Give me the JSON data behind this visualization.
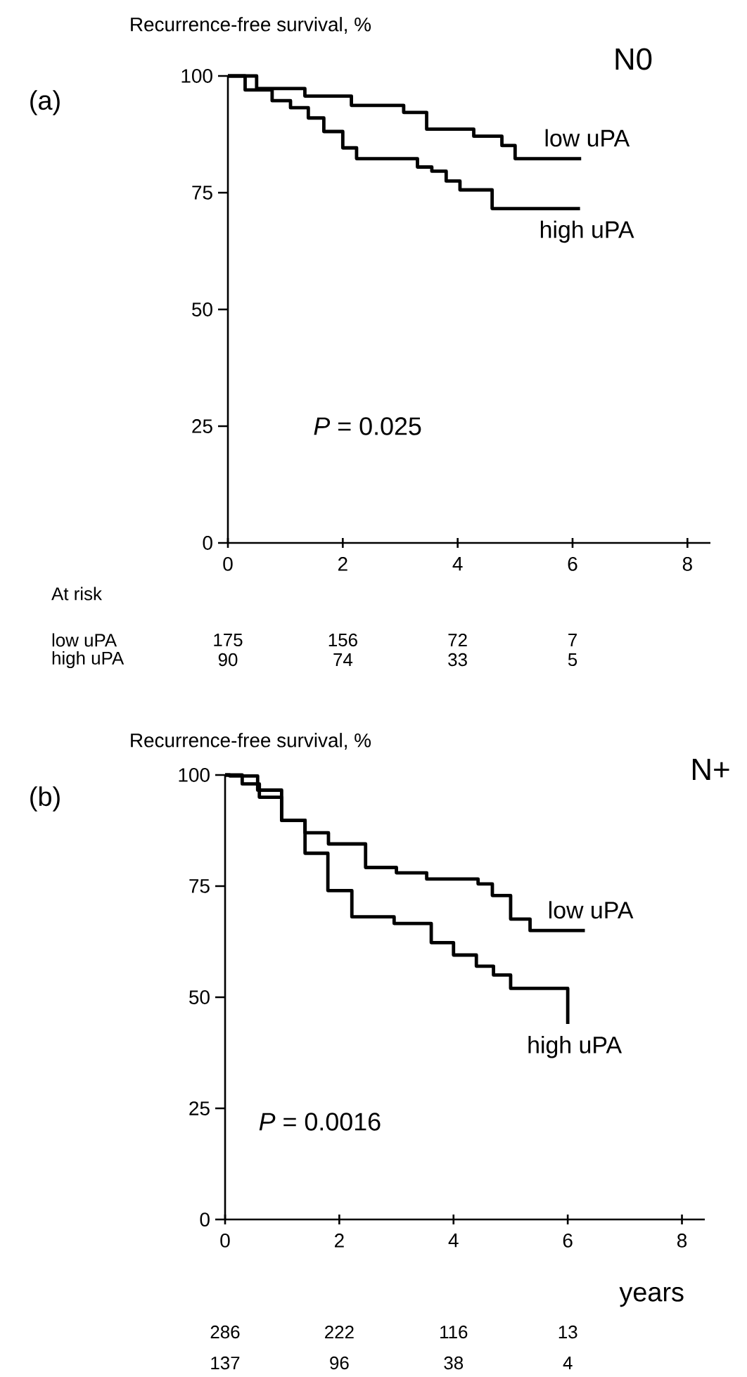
{
  "chart_data": [
    {
      "type": "step",
      "title": "(a)",
      "subtitle": "N0",
      "ylabel": "Recurrence-free survival, %",
      "xlim": [
        0,
        8.4
      ],
      "ylim": [
        0,
        100
      ],
      "xticks": [
        0,
        2,
        4,
        6,
        8
      ],
      "yticks": [
        0,
        25,
        50,
        75,
        100
      ],
      "series": [
        {
          "name": "low uPA",
          "color": "#000000",
          "x": [
            0,
            0.5,
            1.34,
            2.15,
            3.06,
            3.46,
            4.28,
            4.77,
            5.0,
            6.15
          ],
          "values": [
            100,
            97.3,
            95.7,
            93.7,
            92.2,
            88.6,
            87.1,
            85.1,
            82.3,
            82.3
          ]
        },
        {
          "name": "high uPA",
          "color": "#000000",
          "x": [
            0,
            0.3,
            0.77,
            1.09,
            1.4,
            1.67,
            2.0,
            2.24,
            3.3,
            3.55,
            3.8,
            4.04,
            4.6,
            6.13
          ],
          "values": [
            100,
            97,
            94.7,
            93.2,
            91,
            88.1,
            84.6,
            82.3,
            80.5,
            79.6,
            77.5,
            75.6,
            71.6,
            71.6
          ]
        }
      ],
      "annotations": [
        "*P* = 0.025",
        "At risk",
        "low uPA",
        "high uPA",
        "175",
        "156",
        "72",
        "7",
        "90",
        "74",
        "33",
        "5"
      ]
    },
    {
      "type": "step",
      "title": "(b)",
      "subtitle": "N+",
      "ylabel": "Recurrence-free survival, %",
      "xlabel": "years",
      "xlim": [
        0,
        8.4
      ],
      "ylim": [
        0,
        100
      ],
      "xticks": [
        0,
        2,
        4,
        6,
        8
      ],
      "yticks": [
        0,
        25,
        50,
        75,
        100
      ],
      "series": [
        {
          "name": "low uPA",
          "color": "#000000",
          "x": [
            0,
            0.08,
            0.57,
            0.99,
            1.4,
            1.81,
            2.46,
            3.0,
            3.53,
            4.43,
            4.68,
            5.0,
            5.34,
            6.3
          ],
          "values": [
            100,
            99.8,
            96.6,
            89.8,
            87,
            84.5,
            79.2,
            78,
            76.6,
            75.5,
            72.9,
            67.6,
            65.0,
            65.0
          ]
        },
        {
          "name": "high uPA",
          "color": "#000000",
          "x": [
            0,
            0.3,
            0.6,
            0.99,
            1.4,
            1.8,
            2.22,
            2.96,
            3.61,
            4.0,
            4.4,
            4.7,
            5.0,
            6.0,
            6.0
          ],
          "values": [
            100,
            98,
            95,
            89.8,
            82.4,
            74,
            68.1,
            66.6,
            62.3,
            59.5,
            57,
            55,
            52,
            52,
            44
          ]
        }
      ],
      "annotations": [
        "*P* = 0.0016",
        "286",
        "222",
        "116",
        "13",
        "137",
        "96",
        "38",
        "4"
      ]
    }
  ]
}
